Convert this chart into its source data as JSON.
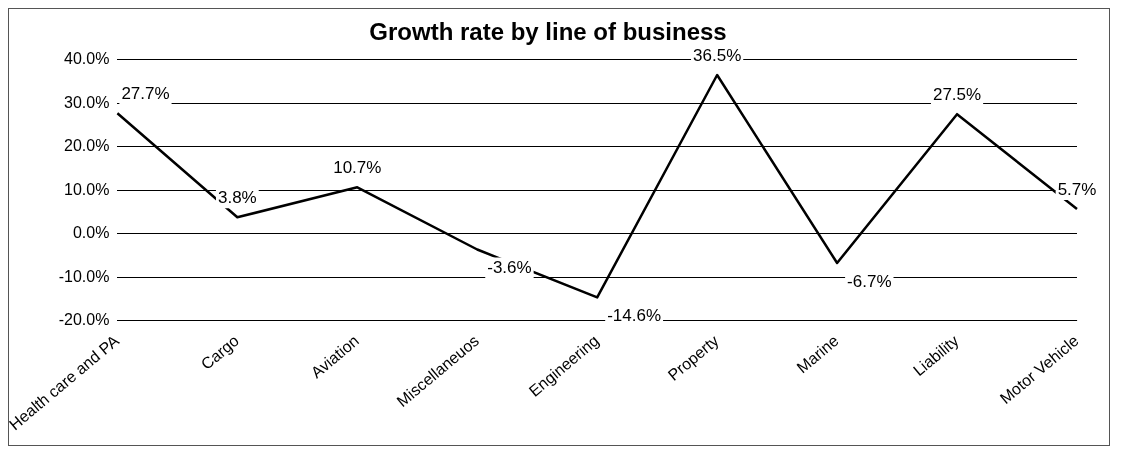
{
  "chart_data": {
    "type": "line",
    "title": "Growth rate by line of business",
    "categories": [
      "Health care and PA",
      "Cargo",
      "Aviation",
      "Miscellaneuos",
      "Engineering",
      "Property",
      "Marine",
      "Liability",
      "Motor Vehicle"
    ],
    "values": [
      27.7,
      3.8,
      10.7,
      -3.6,
      -14.6,
      36.5,
      -6.7,
      27.5,
      5.7
    ],
    "value_labels": [
      "27.7%",
      "3.8%",
      "10.7%",
      "-3.6%",
      "-14.6%",
      "36.5%",
      "-6.7%",
      "27.5%",
      "5.7%"
    ],
    "color": "#000000",
    "ylim": [
      -20,
      40
    ],
    "yticks": [
      {
        "value": -20,
        "label": "-20.0%"
      },
      {
        "value": -10,
        "label": "-10.0%"
      },
      {
        "value": 0,
        "label": "0.0%"
      },
      {
        "value": 10,
        "label": "10.0%"
      },
      {
        "value": 20,
        "label": "20.0%"
      },
      {
        "value": 30,
        "label": "30.0%"
      },
      {
        "value": 40,
        "label": "40.0%"
      }
    ],
    "grid": "y",
    "marker": "none",
    "line_style": "solid"
  }
}
